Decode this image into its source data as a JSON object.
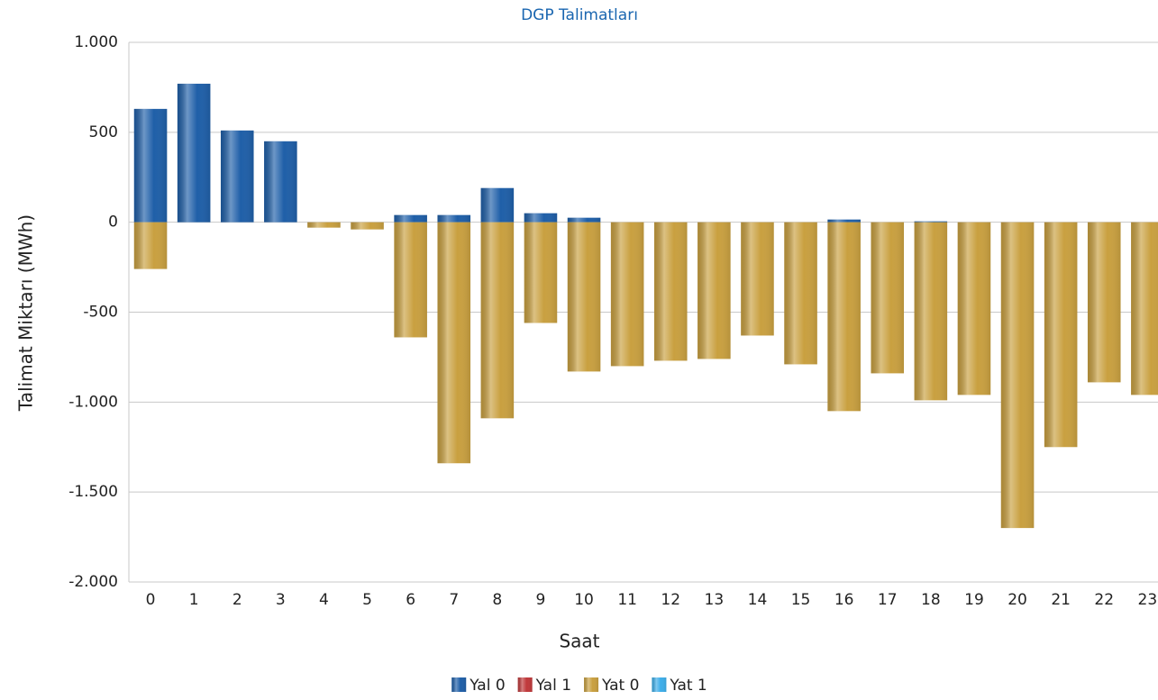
{
  "chart_data": {
    "type": "bar",
    "stacked": true,
    "title": "DGP Talimatları",
    "x_label": "Saat",
    "y_label": "Talimat Miktarı (MWh)",
    "categories": [
      "0",
      "1",
      "2",
      "3",
      "4",
      "5",
      "6",
      "7",
      "8",
      "9",
      "10",
      "11",
      "12",
      "13",
      "14",
      "15",
      "16",
      "17",
      "18",
      "19",
      "20",
      "21",
      "22",
      "23"
    ],
    "series": [
      {
        "name": "Yal 0",
        "color": "#1f5fa8",
        "values": [
          630,
          770,
          510,
          450,
          0,
          0,
          40,
          40,
          190,
          50,
          25,
          0,
          0,
          0,
          0,
          0,
          15,
          0,
          5,
          0,
          0,
          0,
          0,
          0
        ]
      },
      {
        "name": "Yal 1",
        "color": "#c0393b",
        "values": [
          0,
          0,
          0,
          0,
          0,
          0,
          0,
          0,
          0,
          0,
          0,
          0,
          0,
          0,
          0,
          0,
          0,
          0,
          0,
          0,
          0,
          0,
          0,
          0
        ]
      },
      {
        "name": "Yat 0",
        "color": "#c9a040",
        "values": [
          -260,
          0,
          0,
          0,
          -30,
          -40,
          -640,
          -1340,
          -1090,
          -560,
          -830,
          -800,
          -770,
          -760,
          -630,
          -790,
          -1050,
          -840,
          -990,
          -960,
          -1700,
          -1250,
          -890,
          -960
        ]
      },
      {
        "name": "Yat 1",
        "color": "#3daee9",
        "values": [
          0,
          0,
          0,
          0,
          0,
          0,
          0,
          0,
          0,
          0,
          0,
          0,
          0,
          0,
          0,
          0,
          0,
          0,
          0,
          0,
          0,
          0,
          0,
          0
        ]
      }
    ],
    "ylim": [
      -2000,
      1000
    ],
    "yticks": [
      {
        "value": -2000,
        "label": "-2.000"
      },
      {
        "value": -1500,
        "label": "-1.500"
      },
      {
        "value": -1000,
        "label": "-1.000"
      },
      -500,
      0,
      500,
      {
        "value": 1000,
        "label": "1.000"
      }
    ],
    "grid": true,
    "legend": "bottom"
  }
}
